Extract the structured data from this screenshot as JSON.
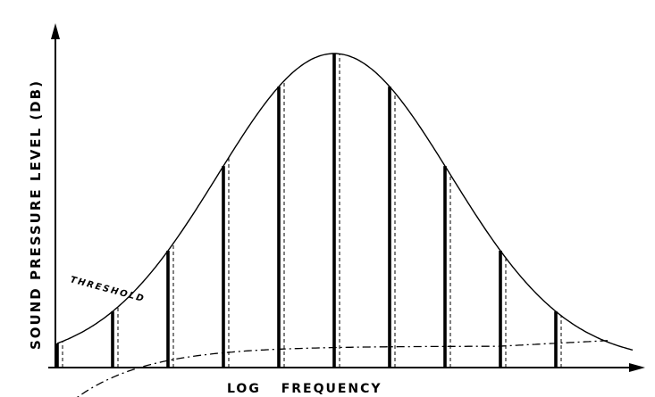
{
  "figure": {
    "y_axis_label": "SOUND PRESSURE LEVEL (DB)",
    "x_axis_label": "LOG FREQUENCY",
    "threshold_label": "THRESHOLD"
  },
  "chart_data": {
    "type": "line",
    "x_scale": "log",
    "grid": false,
    "series": [
      {
        "name": "THRESHOLD",
        "style": "dash-dot"
      }
    ],
    "partials_count": 10,
    "partial_line_styles": [
      "solid",
      "dashed"
    ]
  }
}
